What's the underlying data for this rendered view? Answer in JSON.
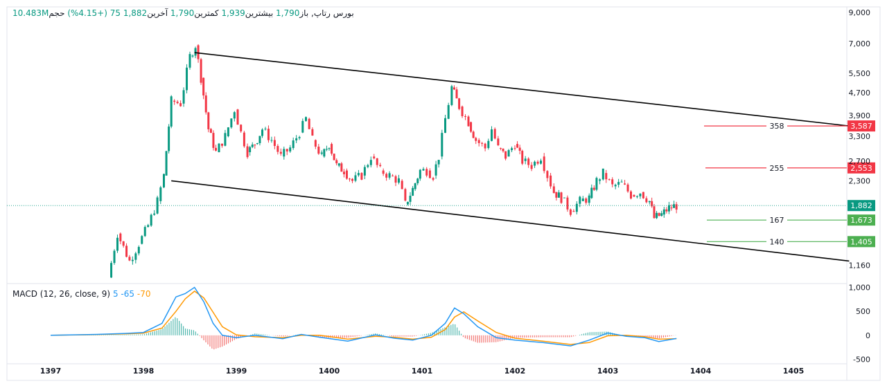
{
  "header": {
    "exchange": "بورس",
    "symbol": "رتاپ,",
    "open_label": "باز",
    "open": "1,790",
    "high_label": "بیشترین",
    "high": "1,939",
    "low_label": "کمترین",
    "low": "1,790",
    "close_label": "آخرین",
    "close": "1,882",
    "change": "75",
    "change_pct": "(+4.15%)",
    "volume_label": "حجم",
    "volume": "10.483M"
  },
  "macd_header": {
    "name": "MACD (12, 26, close, 9)",
    "histogram": "5",
    "macd": "-65",
    "signal": "-70"
  },
  "colors": {
    "up": "#089981",
    "down": "#f23645",
    "macd_line": "#2196f3",
    "signal_line": "#ff9800",
    "hist_up": "#26a69a",
    "hist_down": "#ef5350",
    "resistance": "#f23645",
    "support": "#4caf50",
    "last_price": "#089981"
  },
  "chart_data": {
    "type": "candlestick",
    "price_scale": "log",
    "x_ticks": [
      "1397",
      "1398",
      "1399",
      "1400",
      "1401",
      "1402",
      "1403",
      "1404",
      "1405"
    ],
    "y_ticks": [
      "9,000",
      "7,000",
      "5,500",
      "4,700",
      "3,900",
      "3,300",
      "2,700",
      "2,300",
      "1,160"
    ],
    "y_range": [
      1000,
      9000
    ],
    "last_price": "1,882",
    "price_path": [
      [
        1397.62,
        1050
      ],
      [
        1397.72,
        1500
      ],
      [
        1397.85,
        1200
      ],
      [
        1397.95,
        1380
      ],
      [
        1398.05,
        1600
      ],
      [
        1398.15,
        1950
      ],
      [
        1398.22,
        2400
      ],
      [
        1398.3,
        4400
      ],
      [
        1398.4,
        4300
      ],
      [
        1398.5,
        6300
      ],
      [
        1398.56,
        6900
      ],
      [
        1398.62,
        5300
      ],
      [
        1398.7,
        3500
      ],
      [
        1398.78,
        2900
      ],
      [
        1398.88,
        3300
      ],
      [
        1398.98,
        4100
      ],
      [
        1399.05,
        3400
      ],
      [
        1399.12,
        2900
      ],
      [
        1399.2,
        3100
      ],
      [
        1399.28,
        3500
      ],
      [
        1399.38,
        3200
      ],
      [
        1399.48,
        2800
      ],
      [
        1399.58,
        3000
      ],
      [
        1399.68,
        3400
      ],
      [
        1399.75,
        3800
      ],
      [
        1399.82,
        3200
      ],
      [
        1399.92,
        2800
      ],
      [
        1400.0,
        3100
      ],
      [
        1400.08,
        2600
      ],
      [
        1400.16,
        2500
      ],
      [
        1400.25,
        2300
      ],
      [
        1400.35,
        2400
      ],
      [
        1400.45,
        2800
      ],
      [
        1400.55,
        2500
      ],
      [
        1400.65,
        2400
      ],
      [
        1400.75,
        2300
      ],
      [
        1400.82,
        1900
      ],
      [
        1400.9,
        2150
      ],
      [
        1400.98,
        2500
      ],
      [
        1401.05,
        2500
      ],
      [
        1401.12,
        2400
      ],
      [
        1401.18,
        2800
      ],
      [
        1401.25,
        3800
      ],
      [
        1401.32,
        4900
      ],
      [
        1401.4,
        4200
      ],
      [
        1401.5,
        3700
      ],
      [
        1401.58,
        3200
      ],
      [
        1401.68,
        3000
      ],
      [
        1401.75,
        3500
      ],
      [
        1401.82,
        3000
      ],
      [
        1401.9,
        2800
      ],
      [
        1402.0,
        3100
      ],
      [
        1402.08,
        2700
      ],
      [
        1402.18,
        2600
      ],
      [
        1402.28,
        2800
      ],
      [
        1402.35,
        2400
      ],
      [
        1402.42,
        2100
      ],
      [
        1402.5,
        2000
      ],
      [
        1402.6,
        1800
      ],
      [
        1402.7,
        1950
      ],
      [
        1402.8,
        2000
      ],
      [
        1402.88,
        2300
      ],
      [
        1402.95,
        2450
      ],
      [
        1403.05,
        2200
      ],
      [
        1403.15,
        2250
      ],
      [
        1403.25,
        2050
      ],
      [
        1403.35,
        2100
      ],
      [
        1403.45,
        1950
      ],
      [
        1403.5,
        1700
      ],
      [
        1403.58,
        1750
      ],
      [
        1403.66,
        1850
      ],
      [
        1403.74,
        1882
      ]
    ],
    "trendlines": [
      {
        "name": "upper",
        "from": [
          1398.55,
          6500
        ],
        "to": [
          1405.6,
          3587
        ]
      },
      {
        "name": "lower",
        "from": [
          1398.3,
          2300
        ],
        "to": [
          1405.6,
          1200
        ]
      }
    ],
    "levels": [
      {
        "value": 3587,
        "badge": "3,587",
        "label": "358",
        "kind": "resistance"
      },
      {
        "value": 2553,
        "badge": "2,553",
        "label": "255",
        "kind": "resistance"
      },
      {
        "value": 1673,
        "badge": "1,673",
        "label": "167",
        "kind": "support"
      },
      {
        "value": 1405,
        "badge": "1,405",
        "label": "140",
        "kind": "support"
      }
    ],
    "macd": {
      "y_ticks": [
        "1,000",
        "500",
        "0",
        "-500"
      ],
      "y_range": [
        -550,
        1050
      ],
      "macd_line": [
        [
          1397.0,
          0
        ],
        [
          1397.5,
          20
        ],
        [
          1397.8,
          40
        ],
        [
          1398.0,
          60
        ],
        [
          1398.2,
          250
        ],
        [
          1398.35,
          800
        ],
        [
          1398.45,
          870
        ],
        [
          1398.55,
          1000
        ],
        [
          1398.65,
          700
        ],
        [
          1398.75,
          250
        ],
        [
          1398.85,
          0
        ],
        [
          1399.0,
          -50
        ],
        [
          1399.2,
          0
        ],
        [
          1399.5,
          -70
        ],
        [
          1399.7,
          20
        ],
        [
          1399.9,
          -40
        ],
        [
          1400.2,
          -120
        ],
        [
          1400.5,
          10
        ],
        [
          1400.7,
          -60
        ],
        [
          1400.9,
          -100
        ],
        [
          1401.1,
          0
        ],
        [
          1401.25,
          250
        ],
        [
          1401.35,
          570
        ],
        [
          1401.45,
          450
        ],
        [
          1401.6,
          180
        ],
        [
          1401.8,
          -50
        ],
        [
          1402.0,
          -100
        ],
        [
          1402.3,
          -150
        ],
        [
          1402.6,
          -220
        ],
        [
          1402.8,
          -100
        ],
        [
          1403.0,
          50
        ],
        [
          1403.2,
          -20
        ],
        [
          1403.4,
          -50
        ],
        [
          1403.55,
          -130
        ],
        [
          1403.74,
          -65
        ]
      ],
      "signal_line": [
        [
          1397.0,
          0
        ],
        [
          1397.5,
          15
        ],
        [
          1397.8,
          30
        ],
        [
          1398.0,
          45
        ],
        [
          1398.2,
          150
        ],
        [
          1398.35,
          500
        ],
        [
          1398.45,
          760
        ],
        [
          1398.55,
          920
        ],
        [
          1398.65,
          780
        ],
        [
          1398.75,
          480
        ],
        [
          1398.85,
          180
        ],
        [
          1399.0,
          10
        ],
        [
          1399.2,
          -30
        ],
        [
          1399.5,
          -50
        ],
        [
          1399.7,
          0
        ],
        [
          1399.9,
          0
        ],
        [
          1400.2,
          -80
        ],
        [
          1400.5,
          -20
        ],
        [
          1400.7,
          -40
        ],
        [
          1400.9,
          -80
        ],
        [
          1401.1,
          -40
        ],
        [
          1401.25,
          120
        ],
        [
          1401.35,
          380
        ],
        [
          1401.45,
          490
        ],
        [
          1401.6,
          300
        ],
        [
          1401.8,
          60
        ],
        [
          1402.0,
          -60
        ],
        [
          1402.3,
          -120
        ],
        [
          1402.6,
          -190
        ],
        [
          1402.8,
          -150
        ],
        [
          1403.0,
          -10
        ],
        [
          1403.2,
          0
        ],
        [
          1403.4,
          -30
        ],
        [
          1403.55,
          -80
        ],
        [
          1403.74,
          -70
        ]
      ]
    }
  }
}
